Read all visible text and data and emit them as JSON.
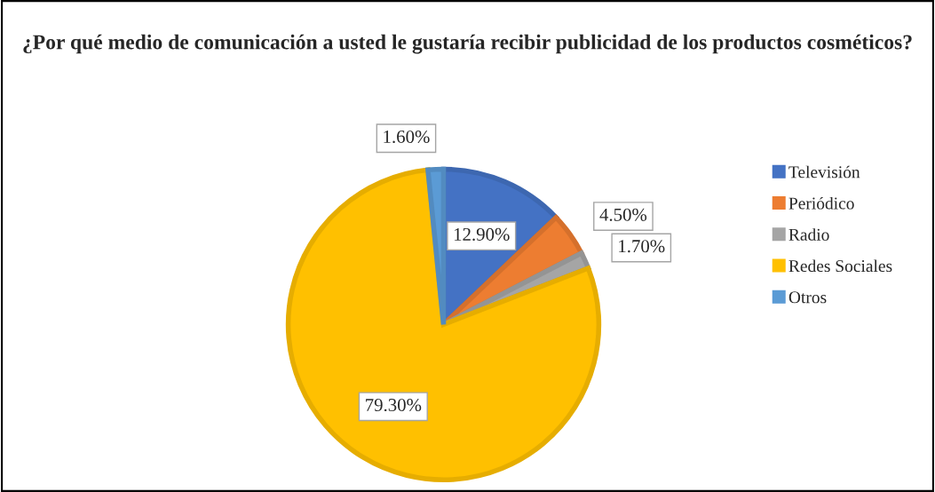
{
  "chart_data": {
    "type": "pie",
    "title": "¿Por qué medio de comunicación a usted le gustaría recibir publicidad de los productos cosméticos?",
    "categories": [
      "Televisión",
      "Periódico",
      "Radio",
      "Redes Sociales",
      "Otros"
    ],
    "values": [
      12.9,
      4.5,
      1.7,
      79.3,
      1.6
    ],
    "colors": [
      "#4472c4",
      "#ed7d31",
      "#a5a5a5",
      "#ffc000",
      "#5b9bd5"
    ],
    "value_labels": [
      "12.90%",
      "4.50%",
      "1.70%",
      "79.30%",
      "1.60%"
    ],
    "legend": "right"
  }
}
